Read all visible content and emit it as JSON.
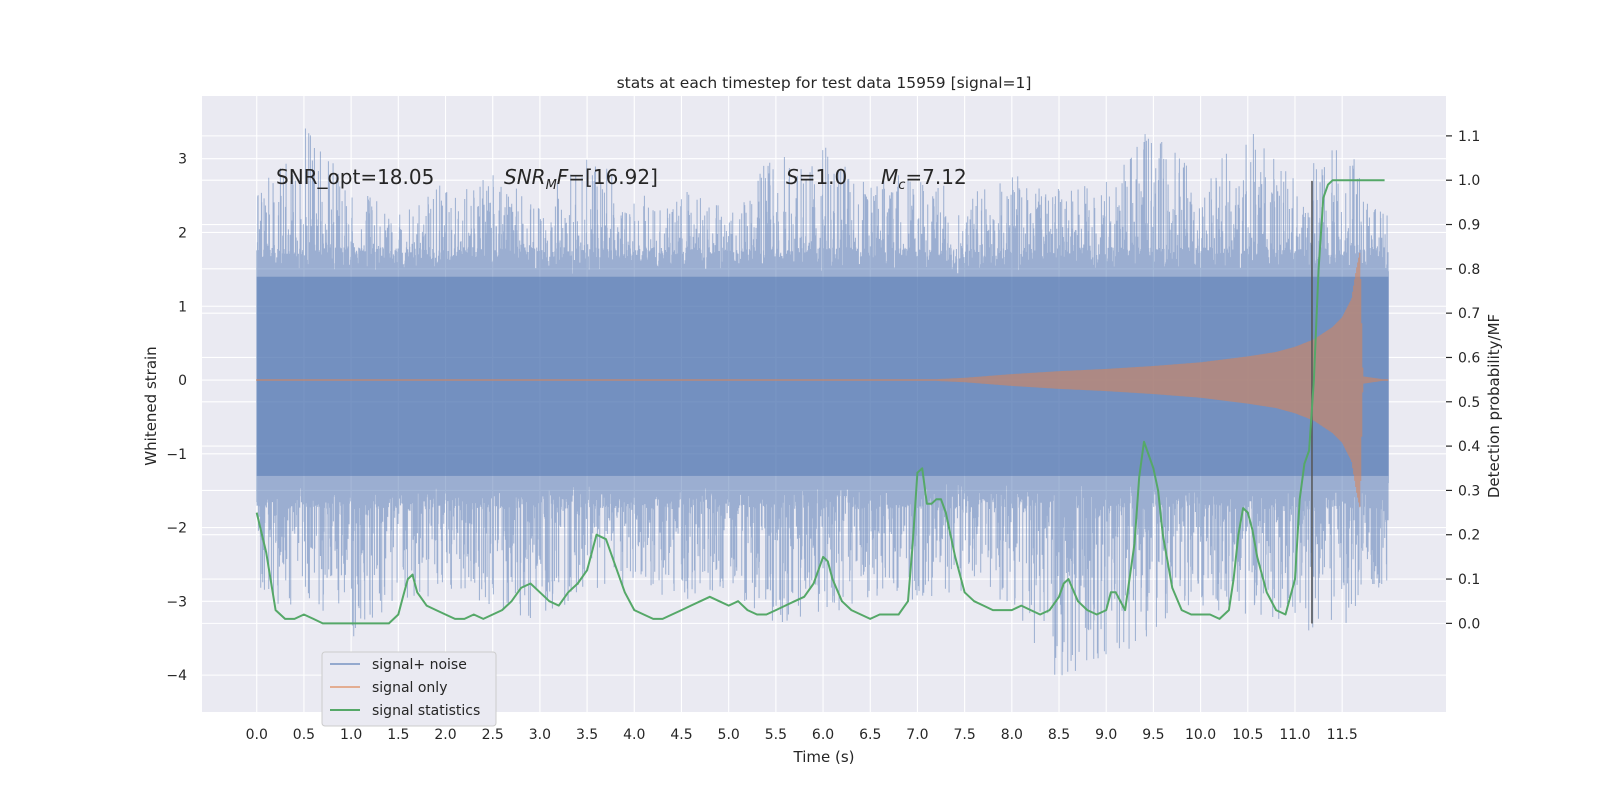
{
  "chart_data": {
    "type": "line",
    "title": "stats at each timestep for test data 15959 [signal=1]",
    "xlabel": "Time (s)",
    "ylabel": "Whitened strain",
    "ylabel_right": "Detection probability/MF",
    "xlim": [
      -0.58,
      12.6
    ],
    "ylim": [
      -4.5,
      3.85
    ],
    "ylim_right": [
      -0.2,
      1.19
    ],
    "x_ticks": [
      0.0,
      0.5,
      1.0,
      1.5,
      2.0,
      2.5,
      3.0,
      3.5,
      4.0,
      4.5,
      5.0,
      5.5,
      6.0,
      6.5,
      7.0,
      7.5,
      8.0,
      8.5,
      9.0,
      9.5,
      10.0,
      10.5,
      11.0,
      11.5
    ],
    "x_tick_labels": [
      "0.0",
      "0.5",
      "1.0",
      "1.5",
      "2.0",
      "2.5",
      "3.0",
      "3.5",
      "4.0",
      "4.5",
      "5.0",
      "5.5",
      "6.0",
      "6.5",
      "7.0",
      "7.5",
      "8.0",
      "8.5",
      "9.0",
      "9.5",
      "10.0",
      "10.5",
      "11.0",
      "11.5"
    ],
    "y_ticks": [
      -4,
      -3,
      -2,
      -1,
      0,
      1,
      2,
      3
    ],
    "y_tick_labels": [
      "−4",
      "−3",
      "−2",
      "−1",
      "0",
      "1",
      "2",
      "3"
    ],
    "y_ticks_right": [
      0.0,
      0.1,
      0.2,
      0.3,
      0.4,
      0.5,
      0.6,
      0.7,
      0.8,
      0.9,
      1.0,
      1.1
    ],
    "y_tick_labels_right": [
      "0.0",
      "0.1",
      "0.2",
      "0.3",
      "0.4",
      "0.5",
      "0.6",
      "0.7",
      "0.8",
      "0.9",
      "1.0",
      "1.1"
    ],
    "grid": true,
    "legend_position": "lower-left",
    "series": [
      {
        "name": "signal+ noise",
        "axis": "left",
        "color": "#4c72b0",
        "opacity": 0.5,
        "envelope_x": [
          0.0,
          0.5,
          1.0,
          1.5,
          2.0,
          2.5,
          3.0,
          3.5,
          4.0,
          4.5,
          5.0,
          5.5,
          6.0,
          6.5,
          7.0,
          7.5,
          8.0,
          8.5,
          9.0,
          9.5,
          10.0,
          10.5,
          11.0,
          11.5,
          11.99
        ],
        "envelope_upper": [
          2.5,
          3.5,
          2.6,
          2.3,
          2.7,
          2.8,
          2.4,
          3.2,
          2.5,
          2.6,
          2.3,
          3.25,
          3.2,
          2.7,
          2.9,
          2.5,
          2.9,
          2.6,
          2.7,
          3.5,
          2.7,
          3.5,
          2.8,
          3.3,
          2.2
        ],
        "envelope_lower": [
          -3.0,
          -3.1,
          -3.6,
          -3.0,
          -2.9,
          -3.1,
          -3.3,
          -2.9,
          -2.8,
          -3.0,
          -2.9,
          -3.3,
          -3.2,
          -3.0,
          -3.0,
          -2.9,
          -3.1,
          -4.1,
          -3.9,
          -3.4,
          -3.1,
          -3.2,
          -3.4,
          -3.4,
          -2.7
        ]
      },
      {
        "name": "signal only",
        "axis": "left",
        "color": "#dd8452",
        "opacity": 0.55,
        "envelope_x": [
          0.0,
          7.0,
          7.5,
          8.0,
          8.5,
          9.0,
          9.5,
          10.0,
          10.5,
          10.8,
          11.0,
          11.2,
          11.4,
          11.5,
          11.6,
          11.65,
          11.69,
          11.72,
          11.99
        ],
        "envelope_amplitude": [
          0.0,
          0.0,
          0.03,
          0.08,
          0.12,
          0.15,
          0.19,
          0.24,
          0.32,
          0.38,
          0.45,
          0.55,
          0.72,
          0.85,
          1.1,
          1.5,
          1.75,
          0.05,
          0.0
        ]
      },
      {
        "name": "signal statistics",
        "axis": "right",
        "color": "#55a868",
        "x": [
          0.0,
          0.1,
          0.2,
          0.3,
          0.4,
          0.5,
          0.6,
          0.7,
          0.8,
          0.9,
          1.0,
          1.1,
          1.2,
          1.3,
          1.4,
          1.5,
          1.55,
          1.6,
          1.65,
          1.7,
          1.8,
          1.9,
          2.0,
          2.1,
          2.2,
          2.3,
          2.4,
          2.5,
          2.6,
          2.7,
          2.8,
          2.9,
          3.0,
          3.1,
          3.2,
          3.3,
          3.4,
          3.5,
          3.6,
          3.7,
          3.8,
          3.9,
          4.0,
          4.1,
          4.2,
          4.3,
          4.4,
          4.5,
          4.6,
          4.7,
          4.8,
          4.9,
          5.0,
          5.1,
          5.2,
          5.3,
          5.4,
          5.5,
          5.6,
          5.7,
          5.8,
          5.9,
          6.0,
          6.05,
          6.1,
          6.2,
          6.3,
          6.4,
          6.5,
          6.6,
          6.7,
          6.8,
          6.9,
          6.95,
          7.0,
          7.05,
          7.1,
          7.15,
          7.2,
          7.25,
          7.3,
          7.4,
          7.5,
          7.6,
          7.7,
          7.8,
          7.9,
          8.0,
          8.1,
          8.2,
          8.3,
          8.4,
          8.5,
          8.55,
          8.6,
          8.7,
          8.8,
          8.9,
          9.0,
          9.05,
          9.1,
          9.2,
          9.3,
          9.35,
          9.4,
          9.45,
          9.5,
          9.55,
          9.6,
          9.7,
          9.8,
          9.9,
          10.0,
          10.1,
          10.2,
          10.3,
          10.35,
          10.4,
          10.45,
          10.5,
          10.55,
          10.6,
          10.7,
          10.8,
          10.9,
          11.0,
          11.05,
          11.1,
          11.15,
          11.2,
          11.25,
          11.3,
          11.35,
          11.4,
          11.5,
          11.6,
          11.7,
          11.8,
          11.9,
          11.95
        ],
        "values": [
          0.25,
          0.16,
          0.03,
          0.01,
          0.01,
          0.02,
          0.01,
          0.0,
          0.0,
          0.0,
          0.0,
          0.0,
          0.0,
          0.0,
          0.0,
          0.02,
          0.06,
          0.1,
          0.11,
          0.07,
          0.04,
          0.03,
          0.02,
          0.01,
          0.01,
          0.02,
          0.01,
          0.02,
          0.03,
          0.05,
          0.08,
          0.09,
          0.07,
          0.05,
          0.04,
          0.07,
          0.09,
          0.12,
          0.2,
          0.19,
          0.13,
          0.07,
          0.03,
          0.02,
          0.01,
          0.01,
          0.02,
          0.03,
          0.04,
          0.05,
          0.06,
          0.05,
          0.04,
          0.05,
          0.03,
          0.02,
          0.02,
          0.03,
          0.04,
          0.05,
          0.06,
          0.09,
          0.15,
          0.14,
          0.1,
          0.05,
          0.03,
          0.02,
          0.01,
          0.02,
          0.02,
          0.02,
          0.05,
          0.18,
          0.34,
          0.35,
          0.27,
          0.27,
          0.28,
          0.28,
          0.25,
          0.15,
          0.07,
          0.05,
          0.04,
          0.03,
          0.03,
          0.03,
          0.04,
          0.03,
          0.02,
          0.03,
          0.06,
          0.09,
          0.1,
          0.05,
          0.03,
          0.02,
          0.03,
          0.07,
          0.07,
          0.03,
          0.18,
          0.33,
          0.41,
          0.38,
          0.35,
          0.3,
          0.2,
          0.08,
          0.03,
          0.02,
          0.02,
          0.02,
          0.01,
          0.03,
          0.1,
          0.2,
          0.26,
          0.25,
          0.21,
          0.15,
          0.07,
          0.03,
          0.02,
          0.1,
          0.28,
          0.36,
          0.39,
          0.55,
          0.8,
          0.96,
          0.99,
          1.0,
          1.0,
          1.0,
          1.0,
          1.0,
          1.0,
          1.0
        ]
      }
    ],
    "vertical_line": {
      "x": 11.18,
      "y_from": -3.3,
      "y_to": 2.7,
      "color": "#555555"
    },
    "annotations": {
      "snr_opt": "SNR_opt=18.05",
      "snr_mf_main": "SNR",
      "snr_mf_sub": "M",
      "snr_mf_rest": "F=[16.92]",
      "s_italic": "S",
      "s_value": "=1.0",
      "mc_main": "M",
      "mc_sub": "c",
      "mc_value": "=7.12"
    },
    "legend": [
      "signal+ noise",
      "signal only",
      "signal statistics"
    ]
  },
  "colors": {
    "figure_background": "#ffffff",
    "axes_background": "#eaeaf2",
    "grid": "#ffffff",
    "noise": "#4c72b0",
    "signal": "#dd8452",
    "statistics": "#55a868"
  }
}
